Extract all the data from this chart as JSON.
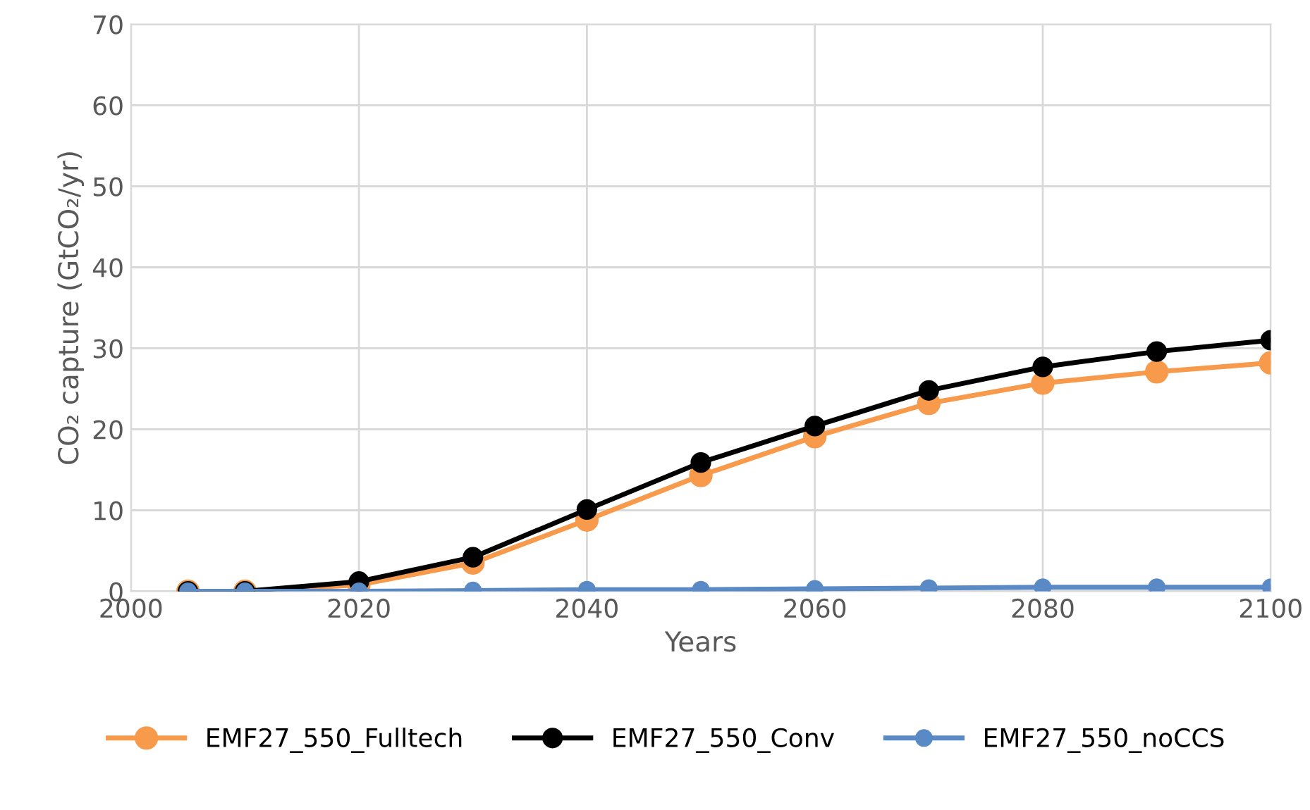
{
  "chart_data": {
    "type": "line",
    "xlabel": "Years",
    "ylabel": "CO₂ capture (GtCO₂/yr)",
    "x": [
      2005,
      2010,
      2020,
      2030,
      2040,
      2050,
      2060,
      2070,
      2080,
      2090,
      2100
    ],
    "series": [
      {
        "name": "EMF27_550_Fulltech",
        "color": "#f79a4b",
        "values": [
          0,
          0,
          0.8,
          3.5,
          8.8,
          14.3,
          19.1,
          23.2,
          25.7,
          27.1,
          28.2
        ]
      },
      {
        "name": "EMF27_550_Conv",
        "color": "#000000",
        "values": [
          0,
          0,
          1.2,
          4.2,
          10.1,
          15.9,
          20.4,
          24.8,
          27.7,
          29.6,
          31.0
        ]
      },
      {
        "name": "EMF27_550_noCCS",
        "color": "#5a8ac6",
        "values": [
          0,
          0,
          0,
          0.1,
          0.2,
          0.2,
          0.3,
          0.4,
          0.5,
          0.5,
          0.5
        ]
      }
    ],
    "xlim": [
      2000,
      2100
    ],
    "xticks": [
      2000,
      2020,
      2040,
      2060,
      2080,
      2100
    ],
    "ylim": [
      0,
      70
    ],
    "yticks": [
      0,
      10,
      20,
      30,
      40,
      50,
      60,
      70
    ],
    "grid": true,
    "legend": "bottom",
    "marker": "circle",
    "line_style": "solid"
  }
}
